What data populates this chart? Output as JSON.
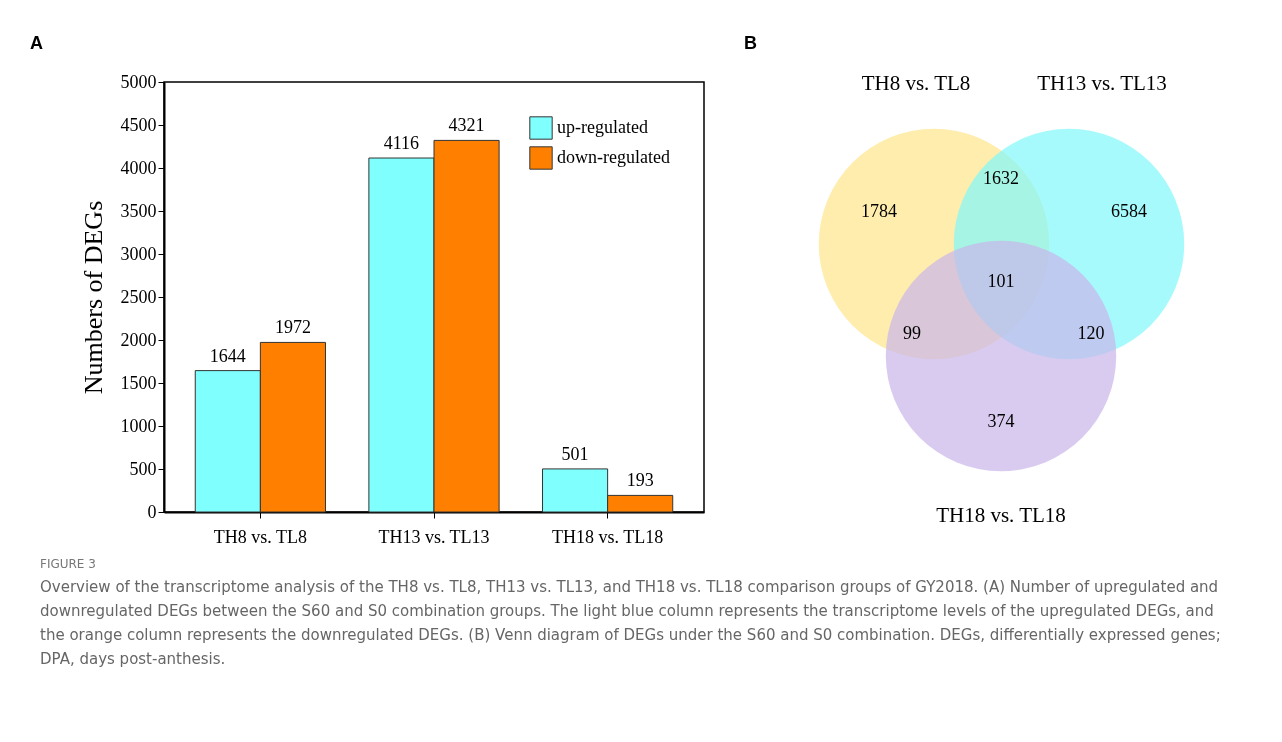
{
  "chart_data": [
    {
      "type": "bar",
      "title": "A",
      "ylabel": "Numbers of DEGs",
      "categories": [
        "TH8 vs. TL8",
        "TH13 vs. TL13",
        "TH18 vs. TL18"
      ],
      "series": [
        {
          "name": "up-regulated",
          "color": "#80ffff",
          "values": [
            1644,
            4116,
            501
          ]
        },
        {
          "name": "down-regulated",
          "color": "#ff8000",
          "values": [
            1972,
            4321,
            193
          ]
        }
      ],
      "ylim": [
        0,
        5000
      ],
      "yticks": [
        0,
        500,
        1000,
        1500,
        2000,
        2500,
        3000,
        3500,
        4000,
        4500,
        5000
      ],
      "data_labels": true,
      "legend": "top right",
      "grid": false,
      "annotations": [
        "FIGURE 3",
        "Overview of the transcriptome analysis of the TH8 vs. TL8, TH13 vs. TL13, and TH18 vs. TL18 comparison groups of GY2018. (A) Number of upregulated and downregulated DEGs between the S60 and S0 combination groups. The light blue column represents the transcriptome levels of the upregulated DEGs, and the orange column represents the downregulated DEGs. (B) Venn diagram of DEGs under the S60 and S0 combination. DEGs, differentially expressed genes; DPA, days post-anthesis."
      ]
    },
    {
      "type": "other",
      "title": "B",
      "categories": [
        "TH8 vs. TL8",
        "TH13 vs. TL13",
        "TH18 vs. TL18"
      ],
      "annotations": [
        "1784",
        "1632",
        "6584",
        "101",
        "99",
        "120",
        "374"
      ]
    }
  ]
}
